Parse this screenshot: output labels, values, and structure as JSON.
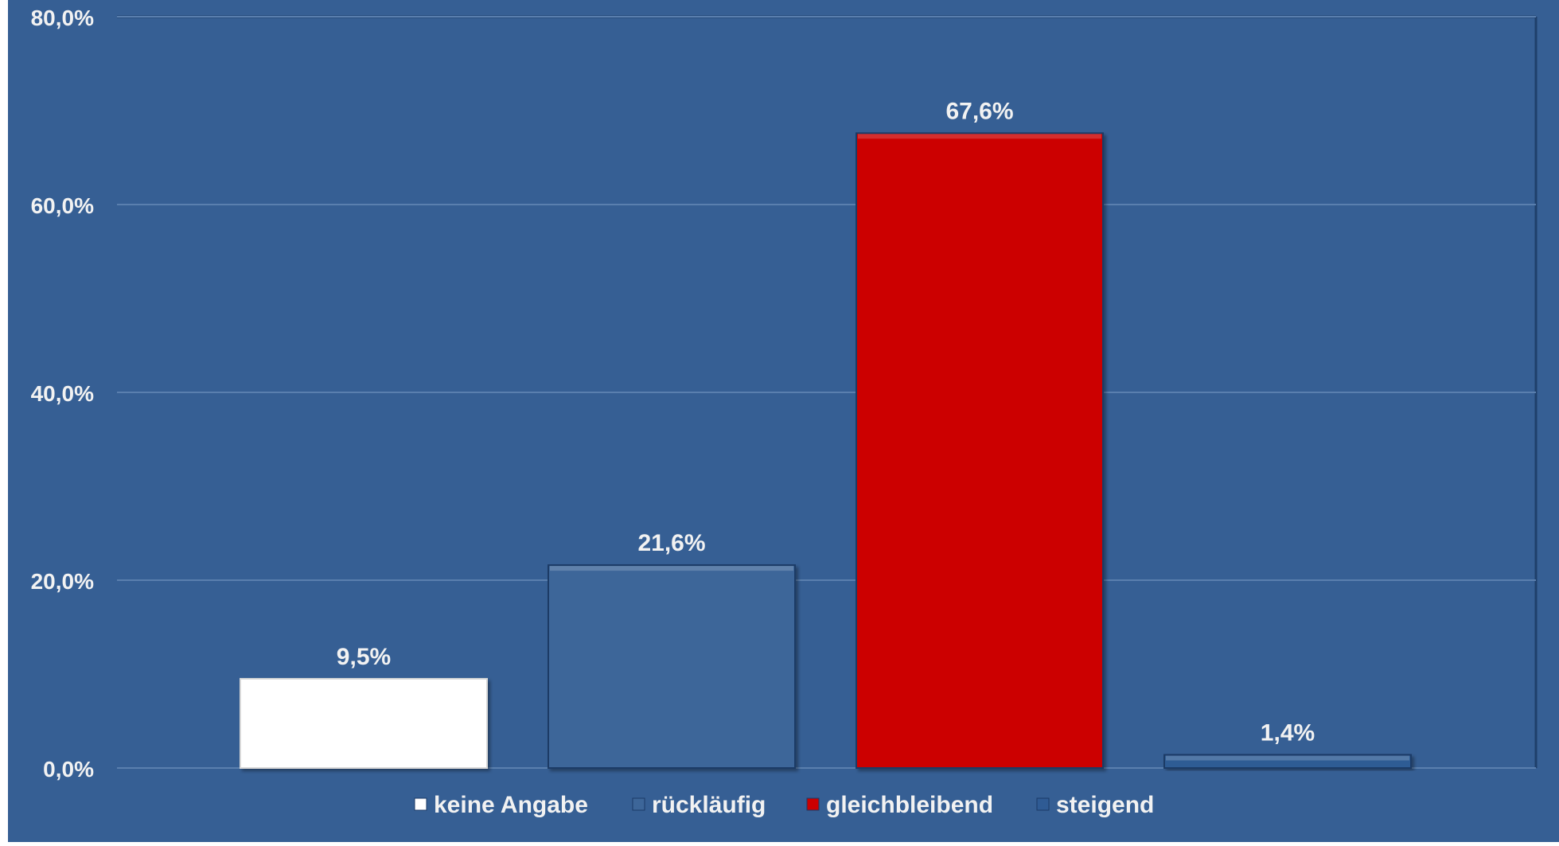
{
  "chart_data": {
    "type": "bar",
    "title": "",
    "xlabel": "",
    "ylabel": "",
    "ylim": [
      0,
      80
    ],
    "yticks": [
      0,
      20,
      40,
      60,
      80
    ],
    "ytick_labels": [
      "0,0%",
      "20,0%",
      "40,0%",
      "60,0%",
      "80,0%"
    ],
    "grid": true,
    "legend_position": "bottom",
    "categories": [
      "keine Angabe",
      "rückläufig",
      "gleichbleibend",
      "steigend"
    ],
    "values": [
      9.5,
      21.6,
      67.6,
      1.4
    ],
    "data_labels": [
      "9,5%",
      "21,6%",
      "67,6%",
      "1,4%"
    ],
    "colors": [
      "#ffffff",
      "#3d6699",
      "#cc0000",
      "#2f5b94"
    ],
    "background_color": "#365f94",
    "gridline_color": "#5a7fae"
  }
}
